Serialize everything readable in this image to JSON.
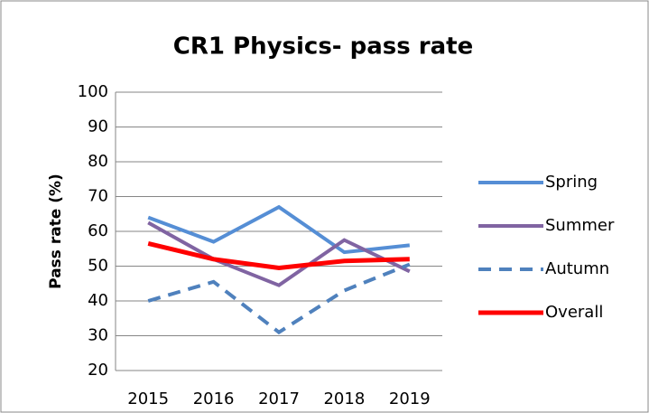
{
  "chart_data": {
    "type": "line",
    "title": "CR1 Physics- pass rate",
    "y_label": "Pass rate (%)",
    "categories": [
      "2015",
      "2016",
      "2017",
      "2018",
      "2019"
    ],
    "series": [
      {
        "name": "Spring",
        "color": "#558ed5",
        "line_style": "solid",
        "values": [
          64,
          57,
          67,
          54,
          56
        ]
      },
      {
        "name": "Summer",
        "color": "#8064a2",
        "line_style": "solid",
        "values": [
          62.5,
          52,
          44.5,
          57.5,
          48.5
        ]
      },
      {
        "name": "Autumn",
        "color": "#4f81bd",
        "line_style": "dashed",
        "values": [
          40,
          45.5,
          31,
          43,
          50.5
        ]
      },
      {
        "name": "Overall",
        "color": "#ff0000",
        "line_style": "solid",
        "values": [
          56.5,
          52,
          49.5,
          51.5,
          52
        ]
      }
    ],
    "ylim": [
      20,
      100
    ],
    "yticks": [
      20,
      30,
      40,
      50,
      60,
      70,
      80,
      90,
      100
    ],
    "grid": true,
    "legend": "right"
  }
}
